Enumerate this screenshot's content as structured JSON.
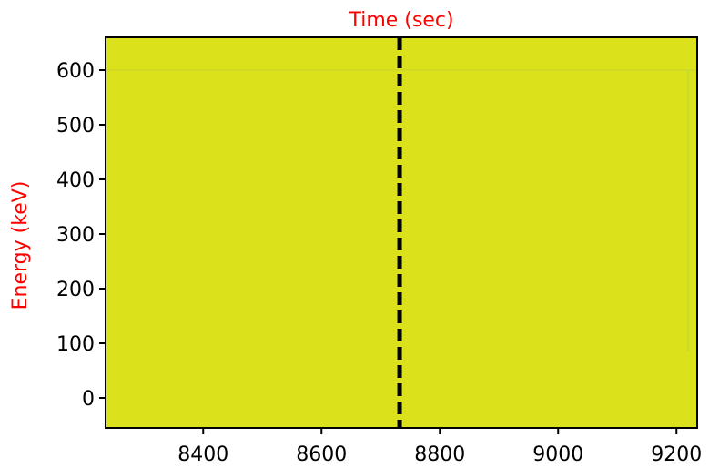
{
  "chart_data": {
    "type": "heatmap",
    "title": "",
    "xlabel": "Time (sec)",
    "ylabel": "Energy (keV)",
    "xlabel_position": "top",
    "xlim": [
      8235,
      9235
    ],
    "ylim": [
      -55,
      660
    ],
    "x_ticks": [
      8400,
      8600,
      8800,
      9000,
      9200
    ],
    "y_ticks": [
      0,
      100,
      200,
      300,
      400,
      500,
      600
    ],
    "grid": false,
    "legend": "none",
    "fill_color": "#dbe21c",
    "vertical_marker": {
      "x": 8732,
      "style": "dashed",
      "color": "#000000"
    },
    "colors": {
      "axis_title": "#ff0000",
      "axes": "#000000",
      "tick_labels": "#000000"
    }
  }
}
